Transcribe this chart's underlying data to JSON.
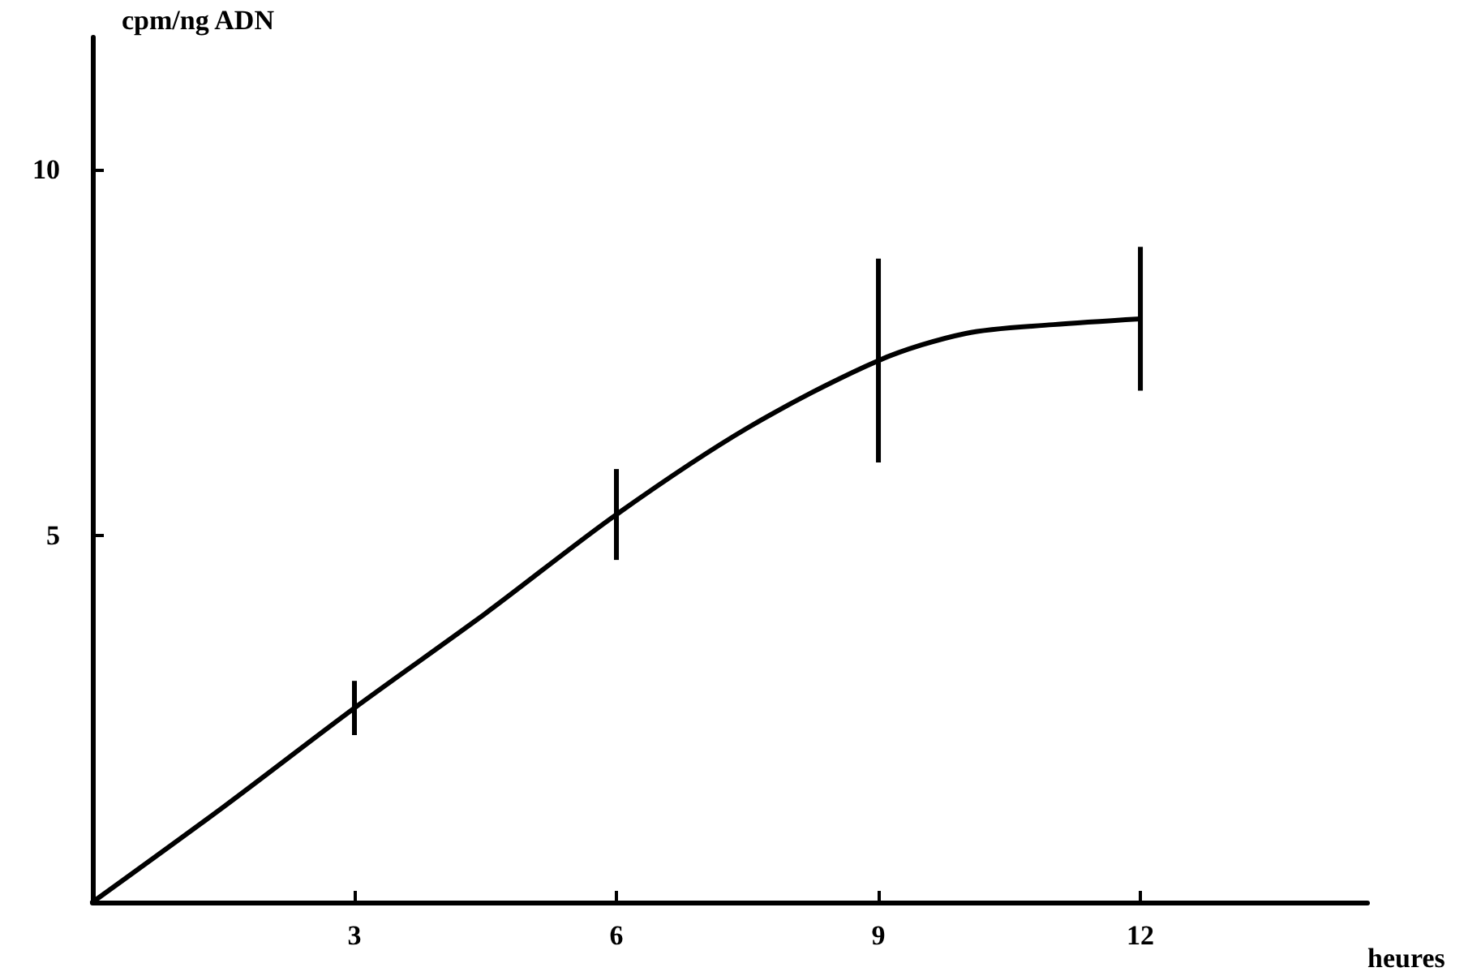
{
  "chart_data": {
    "type": "line",
    "xlabel": "heures",
    "ylabel": "cpm/ng ADN",
    "x": [
      0,
      1.5,
      3,
      4.5,
      6,
      7.5,
      9,
      10,
      11,
      12
    ],
    "values": [
      0,
      1.3,
      2.65,
      3.94,
      5.29,
      6.47,
      7.39,
      7.76,
      7.88,
      7.96
    ],
    "errors": [
      null,
      null,
      0.37,
      null,
      0.62,
      null,
      1.39,
      null,
      null,
      0.98
    ],
    "color": "#000000",
    "marker": "none",
    "line_style": "solid",
    "grid": false,
    "xlim": [
      0,
      14.6
    ],
    "xticks": [
      3,
      6,
      9,
      12
    ],
    "ylim": [
      0,
      11.8
    ],
    "yticks": [
      5,
      10
    ]
  }
}
